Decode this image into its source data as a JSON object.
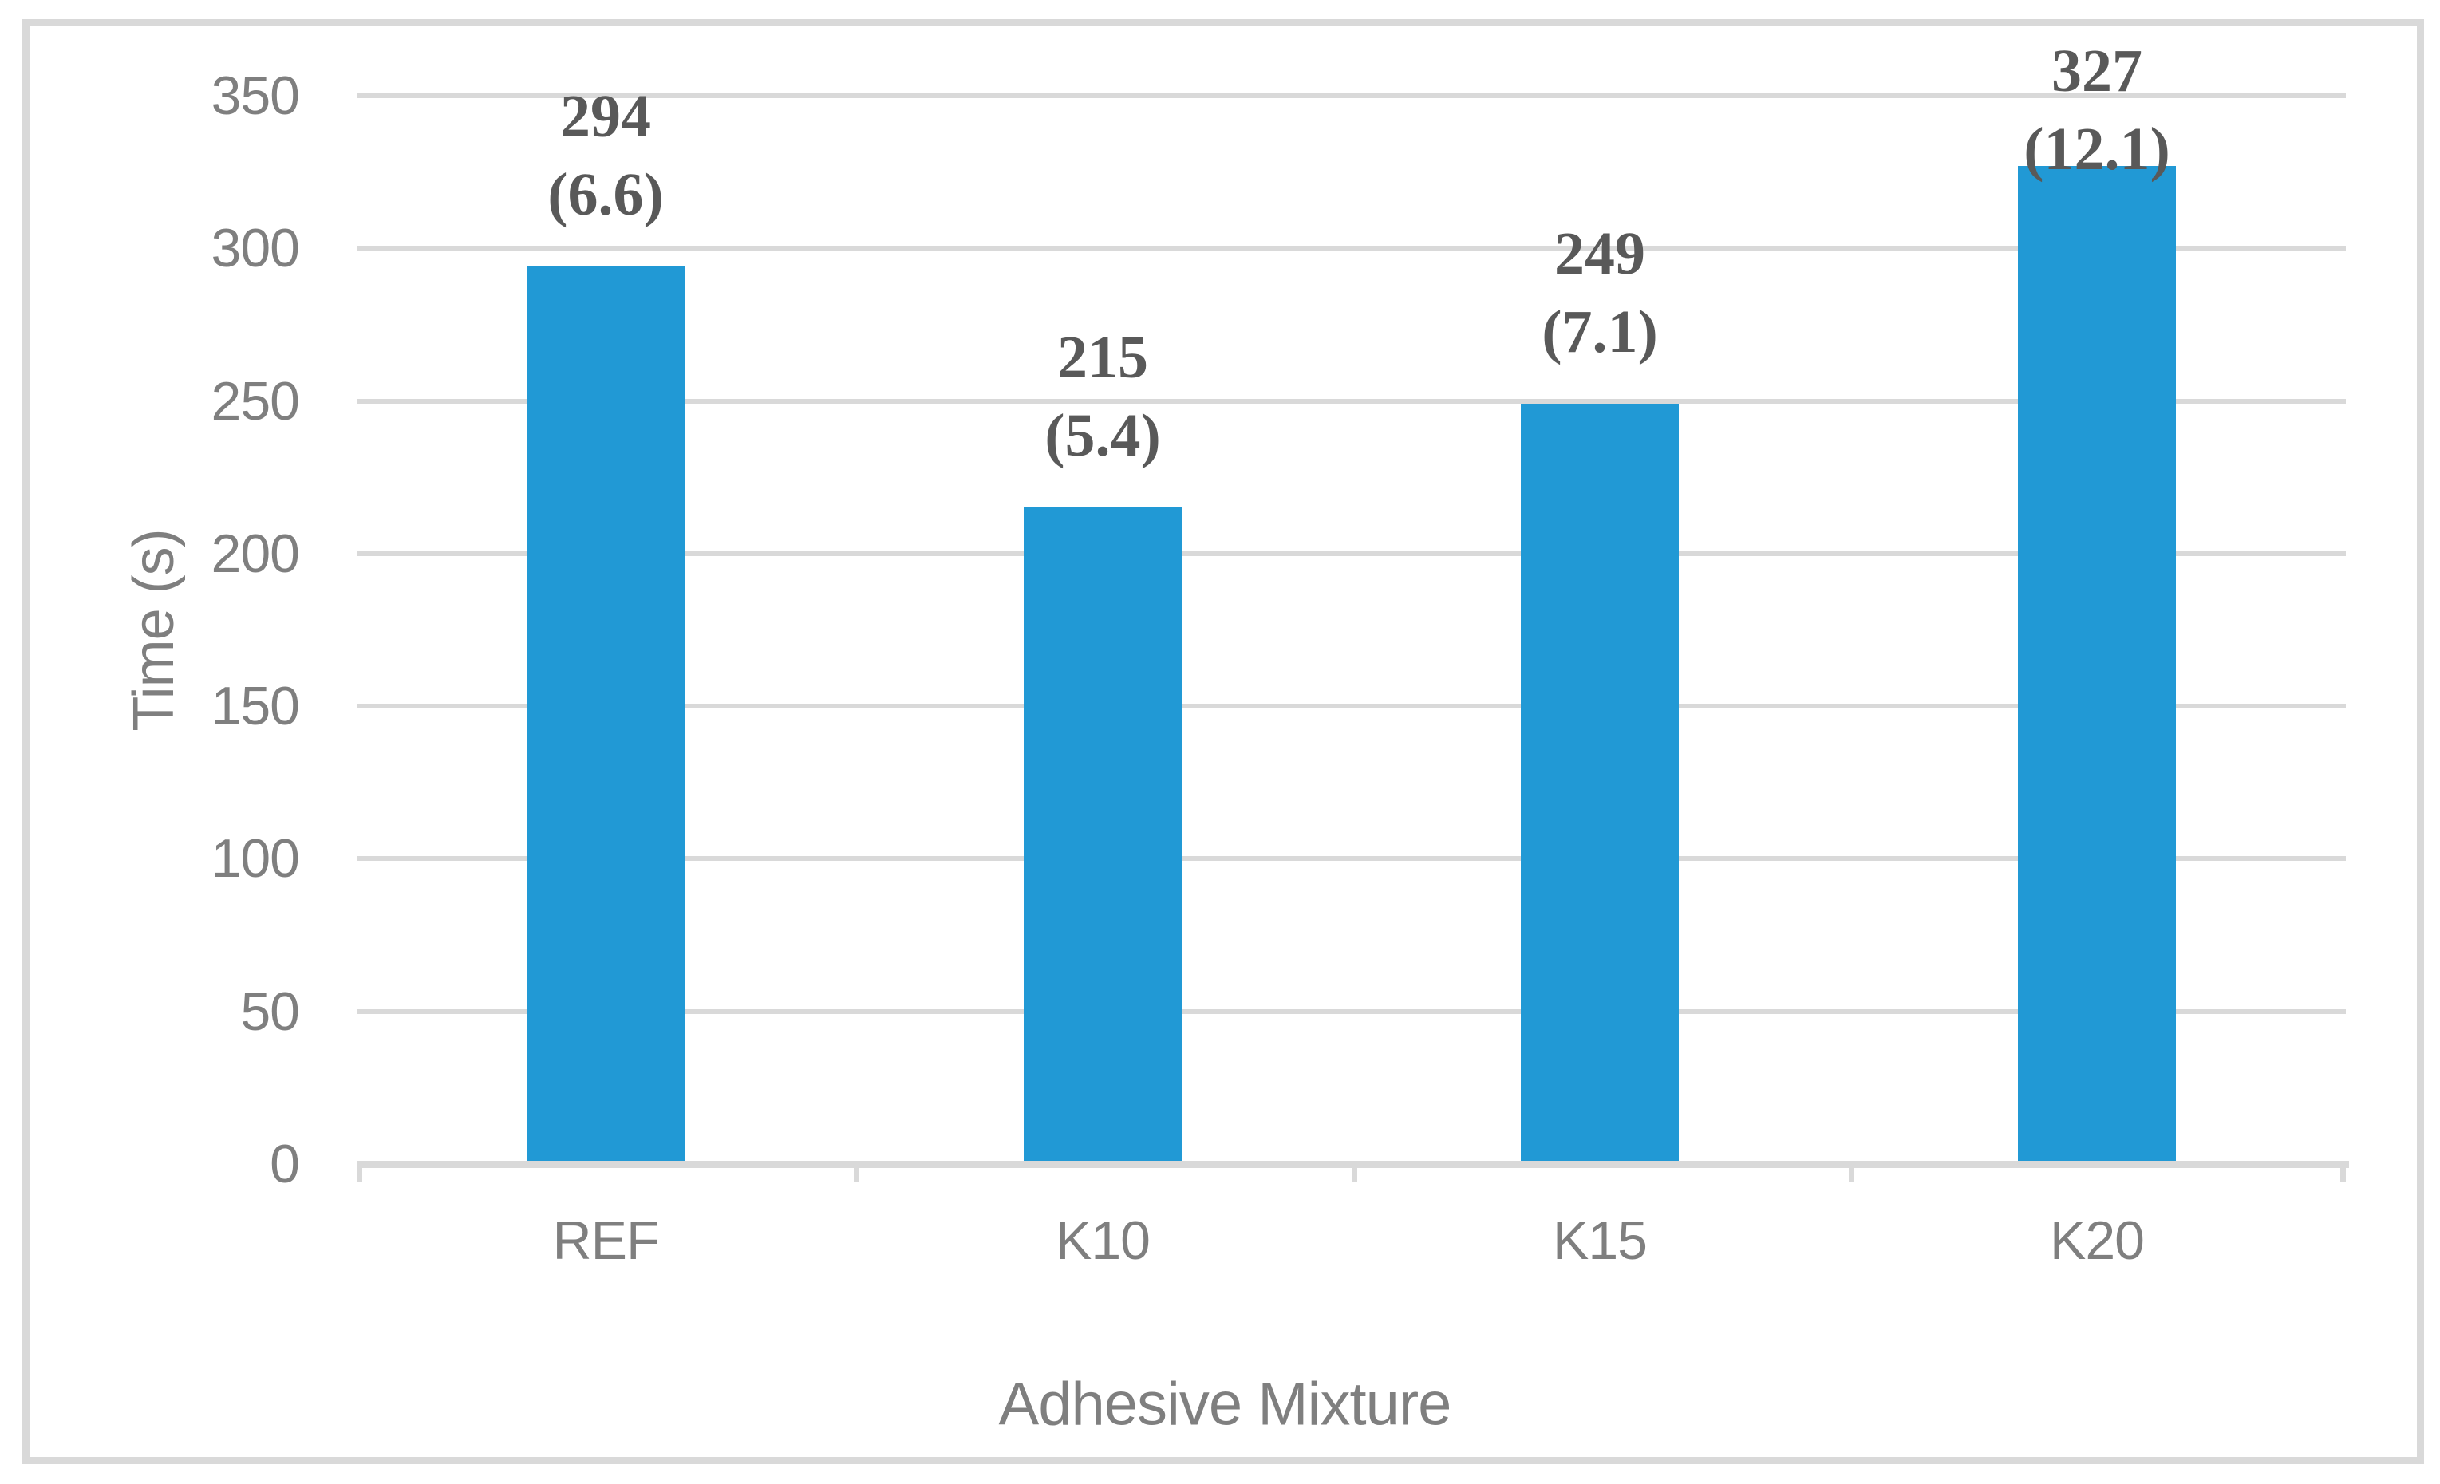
{
  "chart_data": {
    "type": "bar",
    "title": "",
    "categories": [
      "REF",
      "K10",
      "K15",
      "K20"
    ],
    "values": [
      294,
      215,
      249,
      327
    ],
    "data_labels": [
      [
        "294",
        "(6.6)"
      ],
      [
        "215",
        "(5.4)"
      ],
      [
        "249",
        "(7.1)"
      ],
      [
        "327",
        "(12.1)"
      ]
    ],
    "xlabel": "Adhesive Mixture",
    "ylabel": "Time (s)",
    "ylim": [
      0,
      350
    ],
    "ytick_interval": 50,
    "ytick_labels": [
      "0",
      "50",
      "100",
      "150",
      "200",
      "250",
      "300",
      "350"
    ],
    "grid": true,
    "legend": "none",
    "colors": {
      "bar": "#2199D5",
      "gridline": "#D9D9D9",
      "axis_line": "#D9D9D9",
      "border": "#D9D9D9",
      "tick_label": "#7F7F7F",
      "axis_title": "#7F7F7F",
      "data_label": "#595959"
    }
  }
}
